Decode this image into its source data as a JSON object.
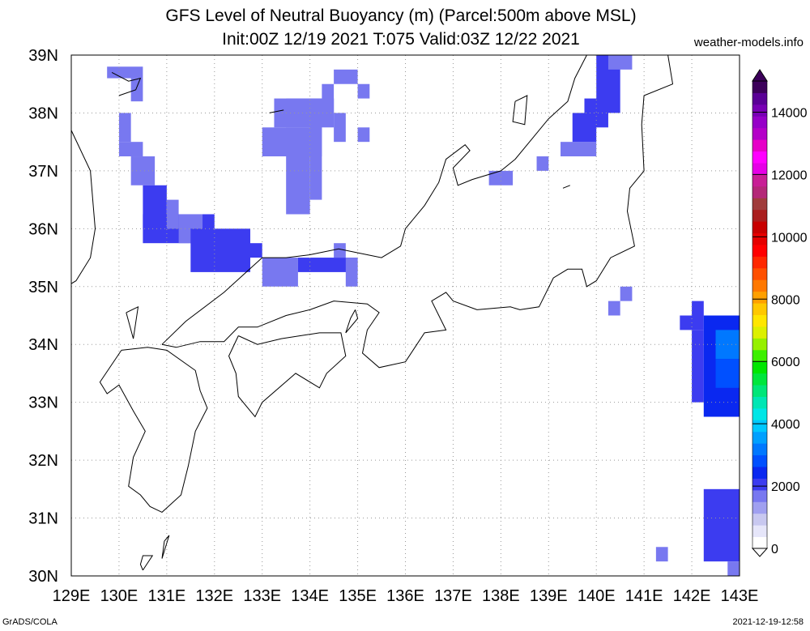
{
  "title_line1": "GFS Level of Neutral Buoyancy (m) (Parcel:500m above MSL)",
  "title_line2": "Init:00Z 12/19 2021 T:075 Valid:03Z 12/22 2021",
  "site": "weather-models.info",
  "footer_left": "GrADS/COLA",
  "footer_right": "2021-12-19-12:58",
  "map": {
    "lon_range": [
      129,
      143
    ],
    "lat_range": [
      30,
      39
    ],
    "lon_labels": [
      "129E",
      "130E",
      "131E",
      "132E",
      "133E",
      "134E",
      "135E",
      "136E",
      "137E",
      "138E",
      "139E",
      "140E",
      "141E",
      "142E",
      "143E"
    ],
    "lat_labels": [
      "30N",
      "31N",
      "32N",
      "33N",
      "34N",
      "35N",
      "36N",
      "37N",
      "38N",
      "39N"
    ],
    "grid": true,
    "grid_step_deg": 0.5
  },
  "colorbar": {
    "labels": [
      "0",
      "2000",
      "4000",
      "6000",
      "8000",
      "10000",
      "12000",
      "14000"
    ],
    "colors": [
      "#ffffff",
      "#e6e6fa",
      "#c8c8f0",
      "#a0a0f0",
      "#7878f0",
      "#3c3cf0",
      "#0a28f0",
      "#0050ff",
      "#0078ff",
      "#00a0ff",
      "#00c8ff",
      "#00e6e6",
      "#00e6b4",
      "#00e678",
      "#00e63c",
      "#00e600",
      "#3cf000",
      "#96f000",
      "#dcf000",
      "#ffe600",
      "#ffc800",
      "#ffa000",
      "#ff7800",
      "#ff5000",
      "#ff2800",
      "#ff0000",
      "#e60000",
      "#c80000",
      "#aa1e1e",
      "#a03c3c",
      "#b42878",
      "#c81e96",
      "#e600e6",
      "#ff00ff",
      "#e600c8",
      "#b400c8",
      "#9600c8",
      "#7800b4",
      "#5a0096",
      "#3c005a"
    ]
  },
  "cells": [
    {
      "lon": 129.75,
      "lat": 38.6,
      "w": 0.75,
      "h": 0.2,
      "v": 1500
    },
    {
      "lon": 130.25,
      "lat": 38.2,
      "w": 0.25,
      "h": 0.4,
      "v": 1600
    },
    {
      "lon": 130.0,
      "lat": 37.5,
      "w": 0.25,
      "h": 0.5,
      "v": 1700
    },
    {
      "lon": 130.0,
      "lat": 37.25,
      "w": 0.5,
      "h": 0.25,
      "v": 1800
    },
    {
      "lon": 130.25,
      "lat": 36.75,
      "w": 0.5,
      "h": 0.5,
      "v": 1800
    },
    {
      "lon": 130.5,
      "lat": 36.0,
      "w": 0.5,
      "h": 0.75,
      "v": 1900
    },
    {
      "lon": 130.5,
      "lat": 35.75,
      "w": 1.5,
      "h": 0.5,
      "v": 1900
    },
    {
      "lon": 131.0,
      "lat": 36.0,
      "w": 0.25,
      "h": 0.5,
      "v": 1800
    },
    {
      "lon": 131.25,
      "lat": 35.75,
      "w": 0.5,
      "h": 0.5,
      "v": 1800
    },
    {
      "lon": 131.5,
      "lat": 35.25,
      "w": 1.25,
      "h": 0.75,
      "v": 1900
    },
    {
      "lon": 132.0,
      "lat": 35.5,
      "w": 1.0,
      "h": 0.25,
      "v": 1900
    },
    {
      "lon": 133.0,
      "lat": 35.0,
      "w": 0.75,
      "h": 0.5,
      "v": 1800
    },
    {
      "lon": 133.75,
      "lat": 35.25,
      "w": 1.25,
      "h": 0.25,
      "v": 1900
    },
    {
      "lon": 134.75,
      "lat": 35.0,
      "w": 0.25,
      "h": 0.5,
      "v": 1800
    },
    {
      "lon": 134.5,
      "lat": 35.5,
      "w": 0.25,
      "h": 0.25,
      "v": 1700
    },
    {
      "lon": 133.5,
      "lat": 36.25,
      "w": 0.5,
      "h": 1.5,
      "v": 1700
    },
    {
      "lon": 133.0,
      "lat": 37.25,
      "w": 1.25,
      "h": 0.5,
      "v": 1800
    },
    {
      "lon": 133.25,
      "lat": 37.75,
      "w": 1.25,
      "h": 0.5,
      "v": 1700
    },
    {
      "lon": 134.0,
      "lat": 36.5,
      "w": 0.25,
      "h": 1.75,
      "v": 1800
    },
    {
      "lon": 133.5,
      "lat": 38.0,
      "w": 1.0,
      "h": 0.25,
      "v": 1800
    },
    {
      "lon": 134.25,
      "lat": 38.0,
      "w": 0.25,
      "h": 0.5,
      "v": 1700
    },
    {
      "lon": 134.5,
      "lat": 38.5,
      "w": 0.5,
      "h": 0.25,
      "v": 1800
    },
    {
      "lon": 134.5,
      "lat": 37.5,
      "w": 0.25,
      "h": 0.5,
      "v": 1700
    },
    {
      "lon": 135.0,
      "lat": 37.5,
      "w": 0.25,
      "h": 0.25,
      "v": 1800
    },
    {
      "lon": 135.0,
      "lat": 38.25,
      "w": 0.25,
      "h": 0.25,
      "v": 1800
    },
    {
      "lon": 137.75,
      "lat": 36.75,
      "w": 0.5,
      "h": 0.25,
      "v": 1800
    },
    {
      "lon": 138.75,
      "lat": 37.0,
      "w": 0.25,
      "h": 0.25,
      "v": 1800
    },
    {
      "lon": 139.25,
      "lat": 37.25,
      "w": 0.75,
      "h": 0.25,
      "v": 1800
    },
    {
      "lon": 139.5,
      "lat": 37.5,
      "w": 0.5,
      "h": 0.5,
      "v": 2000
    },
    {
      "lon": 139.75,
      "lat": 37.75,
      "w": 0.5,
      "h": 0.5,
      "v": 1900
    },
    {
      "lon": 140.0,
      "lat": 38.0,
      "w": 0.5,
      "h": 1.0,
      "v": 1900
    },
    {
      "lon": 140.25,
      "lat": 38.75,
      "w": 0.5,
      "h": 0.25,
      "v": 1800
    },
    {
      "lon": 140.5,
      "lat": 34.75,
      "w": 0.25,
      "h": 0.25,
      "v": 1800
    },
    {
      "lon": 140.25,
      "lat": 34.5,
      "w": 0.25,
      "h": 0.25,
      "v": 1800
    },
    {
      "lon": 141.75,
      "lat": 34.25,
      "w": 0.5,
      "h": 0.25,
      "v": 1900
    },
    {
      "lon": 142.0,
      "lat": 34.5,
      "w": 0.25,
      "h": 0.25,
      "v": 2000
    },
    {
      "lon": 142.0,
      "lat": 33.0,
      "w": 0.25,
      "h": 1.25,
      "v": 2200
    },
    {
      "lon": 142.25,
      "lat": 32.75,
      "w": 0.75,
      "h": 1.75,
      "v": 2400
    },
    {
      "lon": 142.5,
      "lat": 33.75,
      "w": 0.5,
      "h": 0.5,
      "v": 3300
    },
    {
      "lon": 142.5,
      "lat": 33.25,
      "w": 0.5,
      "h": 0.5,
      "v": 2800
    },
    {
      "lon": 142.25,
      "lat": 30.25,
      "w": 0.75,
      "h": 1.25,
      "v": 1900
    },
    {
      "lon": 142.75,
      "lat": 30.0,
      "w": 0.25,
      "h": 0.25,
      "v": 1800
    },
    {
      "lon": 141.25,
      "lat": 30.25,
      "w": 0.25,
      "h": 0.25,
      "v": 1800
    }
  ],
  "coastlines": [
    [
      [
        129.0,
        37.7
      ],
      [
        129.4,
        37.0
      ],
      [
        129.45,
        36.5
      ],
      [
        129.5,
        36.0
      ],
      [
        129.4,
        35.5
      ],
      [
        129.1,
        35.1
      ],
      [
        129.0,
        35.05
      ]
    ],
    [
      [
        129.85,
        38.7
      ],
      [
        130.2,
        38.55
      ],
      [
        130.45,
        38.6
      ],
      [
        130.35,
        38.4
      ],
      [
        130.0,
        38.3
      ]
    ],
    [
      [
        130.05,
        33.9
      ],
      [
        130.6,
        33.95
      ],
      [
        131.0,
        33.9
      ],
      [
        131.6,
        33.55
      ],
      [
        131.7,
        33.2
      ],
      [
        131.85,
        32.9
      ],
      [
        131.6,
        32.5
      ],
      [
        131.45,
        31.9
      ],
      [
        131.3,
        31.4
      ],
      [
        130.9,
        31.1
      ],
      [
        130.65,
        31.2
      ],
      [
        130.45,
        31.4
      ],
      [
        130.2,
        31.55
      ],
      [
        130.3,
        32.05
      ],
      [
        130.55,
        32.5
      ],
      [
        130.3,
        32.85
      ],
      [
        130.0,
        33.3
      ],
      [
        129.75,
        33.15
      ],
      [
        129.6,
        33.35
      ],
      [
        130.05,
        33.9
      ]
    ],
    [
      [
        130.9,
        34.0
      ],
      [
        131.4,
        34.4
      ],
      [
        132.2,
        34.9
      ],
      [
        132.6,
        35.2
      ],
      [
        133.0,
        35.5
      ],
      [
        133.5,
        35.5
      ],
      [
        134.0,
        35.55
      ],
      [
        134.6,
        35.65
      ],
      [
        135.2,
        35.55
      ],
      [
        135.5,
        35.5
      ],
      [
        135.9,
        35.7
      ],
      [
        136.0,
        36.0
      ],
      [
        136.4,
        36.4
      ],
      [
        136.7,
        36.8
      ],
      [
        136.85,
        37.2
      ],
      [
        137.25,
        37.45
      ],
      [
        137.35,
        37.35
      ],
      [
        137.0,
        37.05
      ],
      [
        137.1,
        36.75
      ],
      [
        137.4,
        36.85
      ],
      [
        138.0,
        37.0
      ],
      [
        138.3,
        37.2
      ],
      [
        138.6,
        37.5
      ],
      [
        139.0,
        37.9
      ],
      [
        139.4,
        38.2
      ],
      [
        139.55,
        38.6
      ],
      [
        139.8,
        39.0
      ],
      [
        139.85,
        39.0
      ]
    ],
    [
      [
        141.5,
        39.0
      ],
      [
        141.6,
        38.5
      ],
      [
        141.0,
        38.3
      ],
      [
        140.95,
        37.8
      ],
      [
        141.0,
        37.0
      ],
      [
        140.7,
        36.7
      ],
      [
        140.65,
        36.3
      ],
      [
        140.8,
        35.7
      ],
      [
        140.3,
        35.5
      ],
      [
        140.0,
        35.1
      ],
      [
        139.8,
        35.0
      ],
      [
        139.7,
        35.3
      ],
      [
        139.4,
        35.3
      ],
      [
        139.1,
        35.15
      ],
      [
        138.8,
        34.65
      ],
      [
        138.4,
        34.6
      ],
      [
        138.2,
        34.65
      ],
      [
        137.5,
        34.6
      ],
      [
        137.0,
        34.75
      ],
      [
        136.85,
        34.9
      ],
      [
        136.55,
        34.75
      ],
      [
        136.85,
        34.25
      ],
      [
        136.4,
        34.2
      ],
      [
        136.0,
        33.7
      ],
      [
        135.45,
        33.6
      ],
      [
        135.1,
        33.85
      ],
      [
        135.2,
        34.25
      ],
      [
        135.45,
        34.55
      ],
      [
        135.2,
        34.7
      ],
      [
        134.5,
        34.75
      ],
      [
        134.0,
        34.6
      ],
      [
        133.5,
        34.5
      ],
      [
        132.9,
        34.3
      ],
      [
        132.5,
        34.3
      ],
      [
        132.2,
        34.05
      ],
      [
        131.7,
        34.05
      ],
      [
        131.2,
        33.95
      ],
      [
        130.9,
        34.0
      ]
    ],
    [
      [
        132.5,
        34.15
      ],
      [
        132.9,
        34.0
      ],
      [
        133.4,
        34.1
      ],
      [
        134.2,
        34.2
      ],
      [
        134.65,
        34.2
      ],
      [
        134.75,
        33.8
      ],
      [
        134.35,
        33.5
      ],
      [
        134.2,
        33.25
      ],
      [
        133.7,
        33.5
      ],
      [
        133.0,
        33.0
      ],
      [
        132.85,
        32.75
      ],
      [
        132.5,
        33.1
      ],
      [
        132.45,
        33.5
      ],
      [
        132.3,
        33.8
      ],
      [
        132.5,
        34.15
      ]
    ],
    [
      [
        134.95,
        34.6
      ],
      [
        135.0,
        34.45
      ],
      [
        134.75,
        34.2
      ],
      [
        134.85,
        34.45
      ],
      [
        134.95,
        34.6
      ]
    ],
    [
      [
        133.15,
        38.0
      ],
      [
        133.45,
        38.05
      ]
    ],
    [
      [
        138.3,
        38.2
      ],
      [
        138.55,
        38.3
      ],
      [
        138.5,
        37.8
      ],
      [
        138.25,
        37.85
      ],
      [
        138.3,
        38.2
      ]
    ],
    [
      [
        130.15,
        34.55
      ],
      [
        130.4,
        34.65
      ],
      [
        130.3,
        34.1
      ],
      [
        130.15,
        34.55
      ]
    ],
    [
      [
        130.5,
        30.1
      ],
      [
        130.7,
        30.35
      ],
      [
        130.5,
        30.35
      ],
      [
        130.45,
        30.2
      ],
      [
        130.5,
        30.1
      ]
    ],
    [
      [
        130.9,
        30.3
      ],
      [
        131.05,
        30.7
      ],
      [
        130.95,
        30.6
      ],
      [
        130.9,
        30.3
      ]
    ],
    [
      [
        139.3,
        36.7
      ],
      [
        139.45,
        36.75
      ]
    ]
  ]
}
